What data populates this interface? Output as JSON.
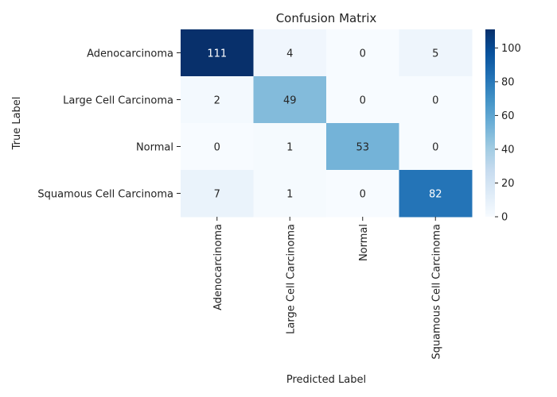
{
  "chart_data": {
    "type": "heatmap",
    "title": "Confusion Matrix",
    "xlabel": "Predicted Label",
    "ylabel": "True Label",
    "rows": [
      "Adenocarcinoma",
      "Large Cell Carcinoma",
      "Normal",
      "Squamous Cell Carcinoma"
    ],
    "cols": [
      "Adenocarcinoma",
      "Large Cell Carcinoma",
      "Normal",
      "Squamous Cell Carcinoma"
    ],
    "values": [
      [
        111,
        4,
        0,
        5
      ],
      [
        2,
        49,
        0,
        0
      ],
      [
        0,
        1,
        53,
        0
      ],
      [
        7,
        1,
        0,
        82
      ]
    ],
    "colorbar": {
      "range": [
        0,
        111
      ],
      "ticks": [
        "0",
        "20",
        "40",
        "60",
        "80",
        "100"
      ],
      "colormap": "Blues"
    },
    "grid": false
  }
}
